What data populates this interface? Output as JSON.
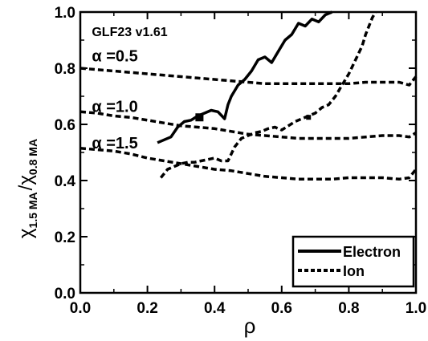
{
  "chart_data": {
    "type": "line",
    "xlabel": "ρ",
    "ylabel": {
      "main1": "χ",
      "sub1": "1.5 MA",
      "slash": "/",
      "main2": "χ",
      "sub2": "0.8 MA"
    },
    "xlim": [
      0.0,
      1.0
    ],
    "ylim": [
      0.0,
      1.0
    ],
    "x_ticks": [
      "0.0",
      "0.2",
      "0.4",
      "0.6",
      "0.8",
      "1.0"
    ],
    "y_ticks": [
      "0.0",
      "0.2",
      "0.4",
      "0.6",
      "0.8",
      "1.0"
    ],
    "grid": false,
    "legend_position": "bottom-right",
    "annotations": [
      {
        "text": "GLF23 v1.61",
        "x": 0.02,
        "y": 0.935,
        "size": "small"
      },
      {
        "text": "α =0.5",
        "x": 0.02,
        "y": 0.845,
        "size": "large"
      },
      {
        "text": "α =1.0",
        "x": 0.02,
        "y": 0.665,
        "size": "large"
      },
      {
        "text": "α =1.5",
        "x": 0.02,
        "y": 0.535,
        "size": "large"
      }
    ],
    "legend": [
      {
        "label": "Electron",
        "style": "solid"
      },
      {
        "label": "Ion",
        "style": "dashed"
      }
    ],
    "series": [
      {
        "style": "solid",
        "x": [
          0.23,
          0.27,
          0.29,
          0.31,
          0.33,
          0.35,
          0.37,
          0.39,
          0.41,
          0.43,
          0.44,
          0.45,
          0.47,
          0.49,
          0.51,
          0.53,
          0.55,
          0.57,
          0.59,
          0.61,
          0.63,
          0.65,
          0.67,
          0.69,
          0.71,
          0.73,
          0.75
        ],
        "y": [
          0.535,
          0.555,
          0.59,
          0.61,
          0.615,
          0.63,
          0.64,
          0.65,
          0.645,
          0.62,
          0.67,
          0.7,
          0.74,
          0.76,
          0.79,
          0.83,
          0.84,
          0.82,
          0.86,
          0.9,
          0.92,
          0.96,
          0.95,
          0.975,
          0.965,
          0.99,
          1.0
        ]
      },
      {
        "style": "dashed",
        "x": [
          0.24,
          0.26,
          0.28,
          0.3,
          0.32,
          0.34,
          0.36,
          0.38,
          0.4,
          0.42,
          0.44,
          0.46,
          0.48,
          0.5,
          0.52,
          0.54,
          0.56,
          0.58,
          0.6,
          0.62,
          0.64,
          0.66,
          0.68,
          0.7,
          0.72,
          0.74,
          0.76,
          0.78,
          0.8,
          0.82,
          0.84,
          0.85,
          0.86,
          0.87,
          0.88
        ],
        "y": [
          0.41,
          0.44,
          0.45,
          0.46,
          0.465,
          0.465,
          0.47,
          0.475,
          0.48,
          0.47,
          0.47,
          0.52,
          0.55,
          0.56,
          0.57,
          0.575,
          0.585,
          0.59,
          0.58,
          0.595,
          0.61,
          0.62,
          0.63,
          0.64,
          0.66,
          0.67,
          0.7,
          0.74,
          0.78,
          0.83,
          0.88,
          0.92,
          0.95,
          0.98,
          1.0
        ]
      },
      {
        "style": "dashed",
        "x": [
          0.0,
          0.05,
          0.1,
          0.15,
          0.2,
          0.25,
          0.3,
          0.35,
          0.4,
          0.45,
          0.5,
          0.55,
          0.6,
          0.65,
          0.7,
          0.75,
          0.8,
          0.85,
          0.9,
          0.95,
          0.98,
          1.0
        ],
        "y": [
          0.8,
          0.795,
          0.79,
          0.785,
          0.78,
          0.775,
          0.77,
          0.765,
          0.76,
          0.755,
          0.75,
          0.745,
          0.745,
          0.745,
          0.745,
          0.745,
          0.745,
          0.75,
          0.75,
          0.75,
          0.74,
          0.77
        ]
      },
      {
        "style": "dashed",
        "x": [
          0.0,
          0.05,
          0.1,
          0.15,
          0.2,
          0.25,
          0.3,
          0.35,
          0.4,
          0.45,
          0.5,
          0.55,
          0.6,
          0.65,
          0.7,
          0.75,
          0.8,
          0.85,
          0.9,
          0.95,
          0.98,
          1.0
        ],
        "y": [
          0.645,
          0.64,
          0.63,
          0.625,
          0.615,
          0.605,
          0.595,
          0.59,
          0.585,
          0.575,
          0.565,
          0.56,
          0.555,
          0.55,
          0.55,
          0.55,
          0.55,
          0.555,
          0.56,
          0.56,
          0.555,
          0.57
        ]
      },
      {
        "style": "dashed",
        "x": [
          0.0,
          0.05,
          0.1,
          0.15,
          0.2,
          0.25,
          0.3,
          0.35,
          0.4,
          0.45,
          0.5,
          0.55,
          0.6,
          0.65,
          0.7,
          0.75,
          0.8,
          0.85,
          0.9,
          0.95,
          0.98,
          1.0
        ],
        "y": [
          0.515,
          0.51,
          0.505,
          0.495,
          0.48,
          0.47,
          0.46,
          0.45,
          0.44,
          0.435,
          0.425,
          0.415,
          0.41,
          0.405,
          0.405,
          0.405,
          0.41,
          0.41,
          0.41,
          0.405,
          0.41,
          0.44
        ]
      }
    ],
    "markers": [
      {
        "x": 0.355,
        "y": 0.625,
        "shape": "square"
      },
      {
        "x": 0.68,
        "y": 0.625,
        "shape": "square-small"
      }
    ]
  }
}
